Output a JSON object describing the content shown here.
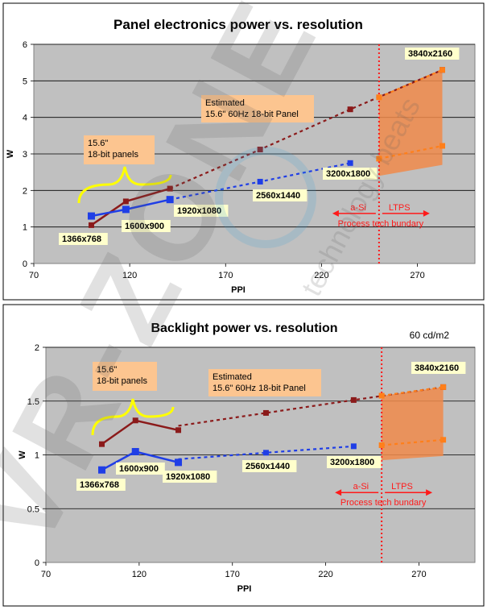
{
  "watermark": {
    "text": "VR-ZONE",
    "subtext": "technology beats"
  },
  "chart_data": [
    {
      "type": "line",
      "title": "Panel electronics power vs. resolution",
      "xlabel": "PPI",
      "ylabel": "W",
      "xlim": [
        70,
        300
      ],
      "ylim": [
        0,
        6
      ],
      "xticks": [
        70,
        120,
        170,
        220,
        270
      ],
      "yticks": [
        0,
        1,
        2,
        3,
        4,
        5,
        6
      ],
      "grid": true,
      "series": [
        {
          "name": "measured-dark",
          "style": "solid",
          "color": "#8b1a1a",
          "marker": "square",
          "points": [
            [
              100,
              1.05
            ],
            [
              118,
              1.7
            ],
            [
              141,
              2.05
            ]
          ]
        },
        {
          "name": "measured-blue",
          "style": "solid",
          "color": "#1f3ee6",
          "marker": "square",
          "points": [
            [
              100,
              1.3
            ],
            [
              118,
              1.48
            ],
            [
              141,
              1.75
            ]
          ]
        },
        {
          "name": "estimated-dark",
          "style": "dotted",
          "color": "#8b1a1a",
          "marker": "square",
          "points": [
            [
              141,
              2.05
            ],
            [
              188,
              3.12
            ],
            [
              235,
              4.22
            ],
            [
              283,
              5.3
            ]
          ]
        },
        {
          "name": "estimated-blue",
          "style": "dotted",
          "color": "#1f3ee6",
          "marker": "square",
          "points": [
            [
              141,
              1.75
            ],
            [
              188,
              2.24
            ],
            [
              235,
              2.75
            ]
          ]
        },
        {
          "name": "ltps-upper",
          "style": "dotted",
          "color": "#ff7f1a",
          "marker": "square",
          "points": [
            [
              250,
              4.55
            ],
            [
              283,
              5.3
            ]
          ]
        },
        {
          "name": "ltps-lower",
          "style": "dotted",
          "color": "#ff7f1a",
          "marker": "square",
          "points": [
            [
              250,
              2.87
            ],
            [
              283,
              3.22
            ]
          ]
        }
      ],
      "ltps_region": [
        [
          250,
          4.55
        ],
        [
          283,
          5.3
        ],
        [
          283,
          2.7
        ],
        [
          250,
          2.4
        ]
      ],
      "boundary_x": 250,
      "labels": [
        "1366x768",
        "1600x900",
        "1920x1080",
        "2560x1440",
        "3200x1800",
        "3840x2160"
      ],
      "annotation_estimated": [
        "Estimated",
        "15.6\" 60Hz 18-bit Panel"
      ],
      "annotation_panels": [
        "15.6\"",
        "18-bit panels"
      ],
      "process_labels": {
        "asi": "a-Si",
        "ltps": "LTPS",
        "boundary": "Process tech bundary"
      }
    },
    {
      "type": "line",
      "title": "Backlight power vs. resolution",
      "note": "60 cd/m2",
      "xlabel": "PPI",
      "ylabel": "W",
      "xlim": [
        70,
        300
      ],
      "ylim": [
        0,
        2
      ],
      "xticks": [
        70,
        120,
        170,
        220,
        270
      ],
      "yticks": [
        0,
        0.5,
        1,
        1.5,
        2
      ],
      "ytick_labels": [
        "0",
        "0.5",
        "1",
        "1.5",
        "2"
      ],
      "grid": true,
      "series": [
        {
          "name": "measured-dark",
          "style": "solid",
          "color": "#8b1a1a",
          "marker": "square",
          "points": [
            [
              100,
              1.1
            ],
            [
              118,
              1.32
            ],
            [
              141,
              1.23
            ]
          ]
        },
        {
          "name": "measured-blue",
          "style": "solid",
          "color": "#1f3ee6",
          "marker": "square",
          "points": [
            [
              100,
              0.86
            ],
            [
              118,
              1.03
            ],
            [
              141,
              0.93
            ]
          ]
        },
        {
          "name": "estimated-dark",
          "style": "dotted",
          "color": "#8b1a1a",
          "marker": "square",
          "points": [
            [
              141,
              1.27
            ],
            [
              188,
              1.39
            ],
            [
              235,
              1.51
            ],
            [
              283,
              1.63
            ]
          ]
        },
        {
          "name": "estimated-blue",
          "style": "dotted",
          "color": "#1f3ee6",
          "marker": "square",
          "points": [
            [
              141,
              0.96
            ],
            [
              188,
              1.02
            ],
            [
              235,
              1.08
            ]
          ]
        },
        {
          "name": "ltps-upper",
          "style": "dotted",
          "color": "#ff7f1a",
          "marker": "square",
          "points": [
            [
              250,
              1.55
            ],
            [
              283,
              1.63
            ]
          ]
        },
        {
          "name": "ltps-lower",
          "style": "dotted",
          "color": "#ff7f1a",
          "marker": "square",
          "points": [
            [
              250,
              1.09
            ],
            [
              283,
              1.14
            ]
          ]
        }
      ],
      "ltps_region": [
        [
          250,
          1.55
        ],
        [
          283,
          1.63
        ],
        [
          283,
          0.99
        ],
        [
          250,
          0.95
        ]
      ],
      "boundary_x": 250,
      "labels": [
        "1366x768",
        "1600x900",
        "1920x1080",
        "2560x1440",
        "3200x1800",
        "3840x2160"
      ],
      "annotation_estimated": [
        "Estimated",
        "15.6\" 60Hz 18-bit Panel"
      ],
      "annotation_panels": [
        "15.6\"",
        "18-bit panels"
      ],
      "process_labels": {
        "asi": "a-Si",
        "ltps": "LTPS",
        "boundary": "Process tech bundary"
      }
    }
  ]
}
